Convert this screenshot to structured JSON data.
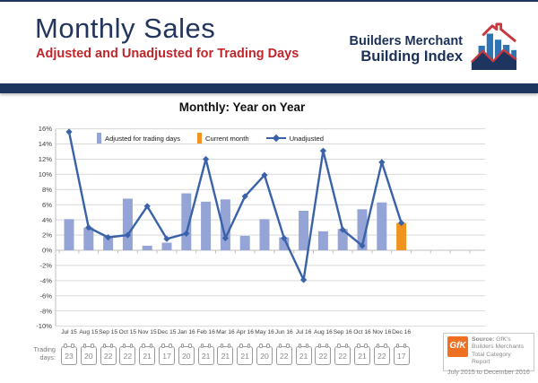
{
  "header": {
    "title": "Monthly Sales",
    "subtitle": "Adjusted and Unadjusted for Trading Days",
    "logo_line1": "Builders Merchant",
    "logo_line2": "Building Index"
  },
  "chart_data": {
    "type": "bar",
    "title": "Monthly: Year on Year",
    "categories": [
      "Jul 15",
      "Aug 15",
      "Sep 15",
      "Oct 15",
      "Nov 15",
      "Dec 15",
      "Jan 16",
      "Feb 16",
      "Mar 16",
      "Apr 16",
      "May 16",
      "Jun 16",
      "Jul 16",
      "Aug 16",
      "Sep 16",
      "Oct 16",
      "Nov 16",
      "Dec 16"
    ],
    "series": [
      {
        "name": "Adjusted for trading days",
        "type": "bar",
        "color": "#95A4D6",
        "values": [
          4.1,
          3.0,
          1.8,
          6.8,
          0.6,
          1.0,
          7.5,
          6.4,
          6.7,
          1.9,
          4.1,
          1.7,
          5.2,
          2.5,
          2.8,
          5.4,
          6.3,
          null
        ]
      },
      {
        "name": "Current month",
        "type": "bar",
        "color": "#F0941F",
        "values": [
          null,
          null,
          null,
          null,
          null,
          null,
          null,
          null,
          null,
          null,
          null,
          null,
          null,
          null,
          null,
          null,
          null,
          3.6
        ]
      },
      {
        "name": "Unadjusted",
        "type": "line",
        "color": "#3A62A8",
        "values": [
          15.6,
          3.0,
          1.7,
          2.0,
          5.8,
          1.5,
          2.2,
          12.0,
          1.6,
          7.1,
          9.9,
          1.6,
          -3.9,
          13.1,
          2.7,
          0.6,
          11.6,
          3.6
        ]
      }
    ],
    "ylabel": "",
    "xlabel": "",
    "ylim": [
      -10,
      16
    ],
    "ytick_step": 2,
    "ytick_format": "percent",
    "grid": true,
    "legend_position": "top-center"
  },
  "trading_days": {
    "label": "Trading\ndays:",
    "values": [
      23,
      20,
      22,
      22,
      21,
      17,
      20,
      21,
      21,
      21,
      20,
      22,
      21,
      22,
      22,
      21,
      22,
      17
    ]
  },
  "source_box": {
    "logo_text": "GfK",
    "line1_bold": "Source:",
    "line1_rest": " GfK's",
    "line2": "Builders Merchants",
    "line3": "Total Category Report",
    "line4": "July 2015 to December 2016"
  },
  "colors": {
    "navy": "#1E3560",
    "title_text": "#22355C",
    "subtitle_red": "#C0262C",
    "gridline": "#D9D9D9",
    "axis": "#BFBFBF",
    "gfk_orange": "#EE7023"
  }
}
